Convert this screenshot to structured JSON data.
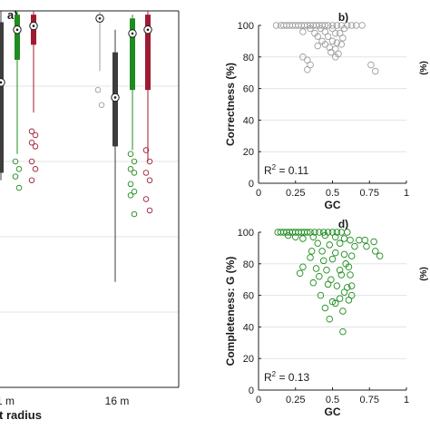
{
  "chart_data": [
    {
      "panel": "a",
      "type": "box",
      "title": "a)",
      "xlabel": "t radius",
      "categories": [
        "1 m",
        "16 m"
      ],
      "colors": {
        "gray": "#9e9e9e",
        "dark": "#3d3d3d",
        "green": "#1e8c1e",
        "red": "#9e1b32"
      },
      "groups": [
        {
          "category": "1 m",
          "boxes": [
            {
              "color": "gray",
              "q1": 32,
              "q3": 95,
              "median": 80,
              "whisker_low": 30,
              "whisker_high": 100,
              "outliers": []
            },
            {
              "color": "dark",
              "q1": 57,
              "q3": 97,
              "median": 81,
              "whisker_low": 55,
              "whisker_high": 100,
              "outliers": []
            },
            {
              "color": "green",
              "q1": 87,
              "q3": 99,
              "median": 95,
              "whisker_low": 62,
              "whisker_high": 100,
              "outliers": [
                60,
                58,
                56,
                53
              ]
            },
            {
              "color": "red",
              "q1": 91,
              "q3": 99,
              "median": 96,
              "whisker_low": 73,
              "whisker_high": 100,
              "outliers": [
                68,
                67,
                65,
                64,
                60,
                58,
                55
              ]
            }
          ]
        },
        {
          "category": "16 m",
          "boxes": [
            {
              "color": "gray",
              "q1": 97,
              "q3": 99,
              "median": 98,
              "whisker_low": 84,
              "whisker_high": 100,
              "outliers": [
                79,
                75
              ]
            },
            {
              "color": "dark",
              "q1": 64,
              "q3": 89,
              "median": 77,
              "whisker_low": 28,
              "whisker_high": 95,
              "outliers": []
            },
            {
              "color": "green",
              "q1": 79,
              "q3": 98,
              "median": 94,
              "whisker_low": 63,
              "whisker_high": 99,
              "outliers": [
                62,
                60,
                58,
                57,
                54,
                52,
                51,
                46
              ]
            },
            {
              "color": "red",
              "q1": 79,
              "q3": 99,
              "median": 95,
              "whisker_low": 60,
              "whisker_high": 100,
              "outliers": [
                63,
                60,
                57,
                55,
                50,
                47
              ]
            }
          ]
        }
      ]
    },
    {
      "panel": "b",
      "type": "scatter",
      "title": "b)",
      "xlabel": "GC",
      "ylabel": "Correctness (%)",
      "xlim": [
        0,
        1
      ],
      "ylim": [
        0,
        100
      ],
      "xticks": [
        "0",
        "0.25",
        "0.5",
        "0.75",
        "1"
      ],
      "yticks": [
        "0",
        "20",
        "40",
        "60",
        "80",
        "100"
      ],
      "grid": true,
      "color": "#9e9e9e",
      "annotation": {
        "prefix": "R",
        "sup": "2",
        "text": " = 0.11"
      },
      "points": [
        [
          0.12,
          100
        ],
        [
          0.15,
          100
        ],
        [
          0.17,
          100
        ],
        [
          0.19,
          100
        ],
        [
          0.21,
          100
        ],
        [
          0.23,
          100
        ],
        [
          0.25,
          100
        ],
        [
          0.27,
          100
        ],
        [
          0.29,
          100
        ],
        [
          0.31,
          100
        ],
        [
          0.33,
          100
        ],
        [
          0.35,
          100
        ],
        [
          0.37,
          100
        ],
        [
          0.39,
          100
        ],
        [
          0.41,
          100
        ],
        [
          0.43,
          100
        ],
        [
          0.45,
          100
        ],
        [
          0.47,
          100
        ],
        [
          0.5,
          100
        ],
        [
          0.53,
          100
        ],
        [
          0.56,
          100
        ],
        [
          0.6,
          100
        ],
        [
          0.63,
          100
        ],
        [
          0.66,
          100
        ],
        [
          0.7,
          100
        ],
        [
          0.35,
          98
        ],
        [
          0.42,
          98
        ],
        [
          0.5,
          98
        ],
        [
          0.58,
          98
        ],
        [
          0.3,
          96
        ],
        [
          0.38,
          95
        ],
        [
          0.45,
          96
        ],
        [
          0.52,
          95
        ],
        [
          0.55,
          95
        ],
        [
          0.4,
          93
        ],
        [
          0.47,
          93
        ],
        [
          0.57,
          92
        ],
        [
          0.43,
          90
        ],
        [
          0.5,
          90
        ],
        [
          0.53,
          89
        ],
        [
          0.45,
          88
        ],
        [
          0.56,
          88
        ],
        [
          0.4,
          87
        ],
        [
          0.48,
          86
        ],
        [
          0.52,
          85
        ],
        [
          0.49,
          83
        ],
        [
          0.54,
          82
        ],
        [
          0.3,
          80
        ],
        [
          0.52,
          80
        ],
        [
          0.33,
          78
        ],
        [
          0.35,
          75
        ],
        [
          0.33,
          72
        ],
        [
          0.76,
          75
        ],
        [
          0.79,
          71
        ]
      ]
    },
    {
      "panel": "d",
      "type": "scatter",
      "title": "d)",
      "xlabel": "GC",
      "ylabel": "Completeness: G (%)",
      "xlim": [
        0,
        1
      ],
      "ylim": [
        0,
        100
      ],
      "xticks": [
        "0",
        "0.25",
        "0.5",
        "0.75",
        "1"
      ],
      "yticks": [
        "0",
        "20",
        "40",
        "60",
        "80",
        "100"
      ],
      "grid": true,
      "color": "#1e8c1e",
      "annotation": {
        "prefix": "R",
        "sup": "2",
        "text": " = 0.13"
      },
      "points": [
        [
          0.13,
          100
        ],
        [
          0.15,
          100
        ],
        [
          0.17,
          100
        ],
        [
          0.19,
          100
        ],
        [
          0.21,
          100
        ],
        [
          0.23,
          100
        ],
        [
          0.25,
          100
        ],
        [
          0.27,
          100
        ],
        [
          0.29,
          100
        ],
        [
          0.31,
          100
        ],
        [
          0.33,
          100
        ],
        [
          0.35,
          100
        ],
        [
          0.38,
          100
        ],
        [
          0.41,
          100
        ],
        [
          0.44,
          100
        ],
        [
          0.47,
          100
        ],
        [
          0.5,
          100
        ],
        [
          0.53,
          100
        ],
        [
          0.56,
          100
        ],
        [
          0.6,
          100
        ],
        [
          0.2,
          98
        ],
        [
          0.25,
          97
        ],
        [
          0.3,
          96
        ],
        [
          0.37,
          97
        ],
        [
          0.45,
          98
        ],
        [
          0.52,
          97
        ],
        [
          0.58,
          96
        ],
        [
          0.62,
          95
        ],
        [
          0.68,
          95
        ],
        [
          0.72,
          95
        ],
        [
          0.78,
          94
        ],
        [
          0.4,
          93
        ],
        [
          0.48,
          92
        ],
        [
          0.55,
          93
        ],
        [
          0.65,
          91
        ],
        [
          0.73,
          91
        ],
        [
          0.79,
          88
        ],
        [
          0.82,
          85
        ],
        [
          0.36,
          88
        ],
        [
          0.43,
          88
        ],
        [
          0.52,
          87
        ],
        [
          0.58,
          86
        ],
        [
          0.63,
          85
        ],
        [
          0.35,
          84
        ],
        [
          0.44,
          82
        ],
        [
          0.5,
          83
        ],
        [
          0.59,
          80
        ],
        [
          0.3,
          78
        ],
        [
          0.39,
          77
        ],
        [
          0.46,
          76
        ],
        [
          0.55,
          76
        ],
        [
          0.61,
          78
        ],
        [
          0.28,
          74
        ],
        [
          0.41,
          72
        ],
        [
          0.49,
          70
        ],
        [
          0.56,
          73
        ],
        [
          0.62,
          73
        ],
        [
          0.37,
          68
        ],
        [
          0.47,
          67
        ],
        [
          0.53,
          66
        ],
        [
          0.6,
          65
        ],
        [
          0.63,
          66
        ],
        [
          0.58,
          62
        ],
        [
          0.42,
          60
        ],
        [
          0.55,
          58
        ],
        [
          0.61,
          57
        ],
        [
          0.5,
          56
        ],
        [
          0.52,
          55
        ],
        [
          0.63,
          60
        ],
        [
          0.45,
          52
        ],
        [
          0.57,
          50
        ],
        [
          0.48,
          45
        ],
        [
          0.57,
          37
        ]
      ]
    },
    {
      "panel": "c-edge",
      "type": "scatter",
      "ylabel_fragment": "(%)"
    }
  ]
}
